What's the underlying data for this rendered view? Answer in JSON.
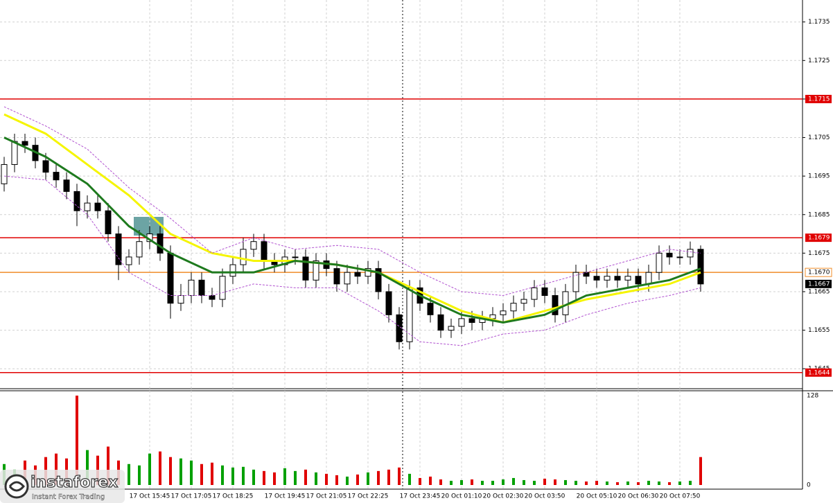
{
  "chart_data": {
    "type": "candlestick",
    "ylim": [
      1.164,
      1.17407
    ],
    "yticks": [
      1.1735,
      1.1725,
      1.1715,
      1.1705,
      1.1695,
      1.1685,
      1.1675,
      1.1665,
      1.1655,
      1.1645
    ],
    "grid": true,
    "categories": [
      null,
      null,
      null,
      null,
      null,
      null,
      null,
      null,
      null,
      null,
      null,
      null,
      null,
      null,
      "17 Oct 15:45",
      null,
      null,
      null,
      "17 Oct 17:05",
      null,
      null,
      null,
      "17 Oct 18:25",
      null,
      null,
      null,
      null,
      "17 Oct 19:45",
      null,
      null,
      null,
      "17 Oct 21:05",
      null,
      null,
      null,
      "17 Oct 22:25",
      null,
      null,
      null,
      null,
      "17 Oct 23:45",
      null,
      null,
      null,
      "20 Oct 01:10",
      null,
      null,
      null,
      "20 Oct 02:30",
      null,
      null,
      null,
      "20 Oct 03:50",
      null,
      null,
      null,
      null,
      "20 Oct 05:10",
      null,
      null,
      null,
      "20 Oct 06:30",
      null,
      null,
      null,
      "20 Oct 07:50",
      null,
      null
    ],
    "open": [
      1.1693,
      1.1698,
      1.1704,
      1.1703,
      1.1699,
      1.1696,
      1.1694,
      1.1691,
      1.1686,
      1.1688,
      1.1686,
      1.168,
      1.1672,
      1.1674,
      1.1678,
      1.168,
      1.1675,
      1.1662,
      1.1664,
      1.1668,
      1.1664,
      1.1663,
      1.1669,
      1.1672,
      1.1676,
      1.1678,
      1.1673,
      1.1672,
      1.1674,
      1.1674,
      1.1668,
      1.1673,
      1.1671,
      1.1667,
      1.167,
      1.1669,
      1.1671,
      1.1665,
      1.1659,
      1.1652,
      1.1666,
      1.1662,
      1.1659,
      1.1655,
      1.1656,
      1.1658,
      1.1657,
      1.1658,
      1.1659,
      1.166,
      1.1662,
      1.1663,
      1.1666,
      1.1664,
      1.1659,
      1.1665,
      1.167,
      1.1669,
      1.1668,
      1.1669,
      1.1668,
      1.1669,
      1.1667,
      1.167,
      1.1675,
      1.1674,
      1.1674,
      1.1676
    ],
    "high": [
      1.17,
      1.1706,
      1.1706,
      1.1705,
      1.1701,
      1.1698,
      1.1696,
      1.1693,
      1.169,
      1.169,
      1.1688,
      1.1682,
      1.1676,
      1.1681,
      1.1682,
      1.1682,
      1.1677,
      1.1667,
      1.167,
      1.167,
      1.1666,
      1.1671,
      1.1674,
      1.1679,
      1.168,
      1.168,
      1.1675,
      1.1676,
      1.1676,
      1.1676,
      1.1675,
      1.1675,
      1.1673,
      1.1672,
      1.1672,
      1.1673,
      1.1673,
      1.1667,
      1.1661,
      1.1668,
      1.1668,
      1.1664,
      1.1661,
      1.1658,
      1.166,
      1.166,
      1.166,
      1.1661,
      1.1662,
      1.1664,
      1.1665,
      1.1668,
      1.1668,
      1.1666,
      1.1667,
      1.1672,
      1.1672,
      1.1671,
      1.1671,
      1.1671,
      1.1671,
      1.1671,
      1.1672,
      1.1677,
      1.1677,
      1.1676,
      1.1678,
      1.1677
    ],
    "low": [
      1.1691,
      1.1696,
      1.1701,
      1.1697,
      1.1694,
      1.1692,
      1.1689,
      1.1682,
      1.1684,
      1.1684,
      1.1678,
      1.1668,
      1.167,
      1.1672,
      1.1676,
      1.1673,
      1.1658,
      1.166,
      1.1662,
      1.1662,
      1.1661,
      1.1661,
      1.1667,
      1.167,
      1.1674,
      1.1671,
      1.167,
      1.167,
      1.1672,
      1.1666,
      1.1666,
      1.1669,
      1.1665,
      1.1665,
      1.1667,
      1.1667,
      1.1663,
      1.1657,
      1.165,
      1.165,
      1.166,
      1.1657,
      1.1653,
      1.1653,
      1.1654,
      1.1655,
      1.1655,
      1.1656,
      1.1657,
      1.1658,
      1.166,
      1.1661,
      1.1662,
      1.1657,
      1.1657,
      1.1663,
      1.1667,
      1.1666,
      1.1666,
      1.1666,
      1.1666,
      1.1665,
      1.1665,
      1.1668,
      1.1672,
      1.1672,
      1.1672,
      1.1665
    ],
    "close": [
      1.1698,
      1.1704,
      1.1703,
      1.1699,
      1.1696,
      1.1694,
      1.1691,
      1.1686,
      1.1688,
      1.1686,
      1.168,
      1.1672,
      1.1674,
      1.1678,
      1.168,
      1.1675,
      1.1662,
      1.1664,
      1.1668,
      1.1664,
      1.1663,
      1.1669,
      1.1672,
      1.1676,
      1.1678,
      1.1673,
      1.1672,
      1.1674,
      1.1674,
      1.1668,
      1.1673,
      1.1671,
      1.1667,
      1.167,
      1.1669,
      1.1671,
      1.1665,
      1.1659,
      1.1652,
      1.1666,
      1.1662,
      1.1659,
      1.1655,
      1.1656,
      1.1658,
      1.1657,
      1.1658,
      1.1659,
      1.166,
      1.1662,
      1.1663,
      1.1666,
      1.1664,
      1.1659,
      1.1665,
      1.167,
      1.1669,
      1.1668,
      1.1669,
      1.1668,
      1.1669,
      1.1667,
      1.167,
      1.1675,
      1.1674,
      1.1674,
      1.1676,
      1.1667
    ],
    "up_color": "#ffffff",
    "down_color": "#000000",
    "lines": [
      {
        "color": "#f5f500",
        "width": 3,
        "x": [
          0,
          4,
          8,
          12,
          16,
          20,
          24,
          28,
          32,
          36,
          40,
          44,
          48,
          52,
          56,
          60,
          64,
          67
        ],
        "values": [
          1.1711,
          1.1706,
          1.1698,
          1.169,
          1.168,
          1.1675,
          1.1673,
          1.1673,
          1.1672,
          1.167,
          1.1665,
          1.166,
          1.1657,
          1.166,
          1.1663,
          1.1665,
          1.1667,
          1.167
        ]
      },
      {
        "color": "#1e7a1e",
        "width": 3,
        "x": [
          0,
          4,
          8,
          12,
          16,
          20,
          24,
          28,
          32,
          36,
          40,
          44,
          48,
          52,
          56,
          60,
          64,
          67
        ],
        "values": [
          1.1705,
          1.17,
          1.1693,
          1.1682,
          1.1675,
          1.167,
          1.167,
          1.1673,
          1.1672,
          1.167,
          1.1664,
          1.1659,
          1.1657,
          1.1659,
          1.1664,
          1.1666,
          1.1668,
          1.1671
        ]
      },
      {
        "color": "#b050d0",
        "width": 1,
        "dashed": true,
        "x": [
          0,
          4,
          8,
          12,
          16,
          20,
          24,
          28,
          32,
          36,
          40,
          44,
          48,
          52,
          56,
          60,
          64,
          67
        ],
        "values": [
          1.1713,
          1.1708,
          1.1702,
          1.1692,
          1.1684,
          1.1675,
          1.1679,
          1.1676,
          1.1677,
          1.1676,
          1.167,
          1.1665,
          1.1664,
          1.1667,
          1.167,
          1.1673,
          1.1676,
          1.1675
        ]
      },
      {
        "color": "#b050d0",
        "width": 1,
        "dashed": true,
        "x": [
          0,
          4,
          8,
          12,
          16,
          20,
          24,
          28,
          32,
          36,
          40,
          44,
          48,
          52,
          56,
          60,
          64,
          67
        ],
        "values": [
          1.1695,
          1.1694,
          1.1685,
          1.167,
          1.1664,
          1.1664,
          1.1667,
          1.1666,
          1.1666,
          1.166,
          1.1652,
          1.1651,
          1.1654,
          1.1655,
          1.1659,
          1.1662,
          1.1664,
          1.1666
        ]
      }
    ],
    "levels": [
      {
        "value": 1.1715,
        "color": "#e00000"
      },
      {
        "value": 1.1679,
        "color": "#e00000"
      },
      {
        "value": 1.1644,
        "color": "#e00000"
      },
      {
        "value": 1.167,
        "label": "1.1670",
        "color": "#f08c28"
      }
    ],
    "last_price": 1.1667,
    "volume": {
      "values": [
        30,
        22,
        35,
        28,
        40,
        45,
        38,
        128,
        50,
        42,
        55,
        35,
        30,
        28,
        45,
        48,
        40,
        38,
        35,
        30,
        32,
        28,
        25,
        26,
        22,
        20,
        18,
        24,
        20,
        22,
        18,
        16,
        14,
        12,
        15,
        18,
        20,
        22,
        25,
        16,
        10,
        12,
        8,
        6,
        7,
        8,
        6,
        6,
        8,
        10,
        7,
        6,
        9,
        8,
        7,
        6,
        5,
        6,
        5,
        4,
        5,
        4,
        6,
        5,
        4,
        5,
        6,
        40
      ],
      "ylim": [
        0,
        128
      ],
      "yticks": [
        0,
        128
      ],
      "up_color": "#00a000",
      "down_color": "#e00000"
    }
  },
  "logo": {
    "name": "instaforex",
    "tagline": "Instant Forex Trading"
  }
}
